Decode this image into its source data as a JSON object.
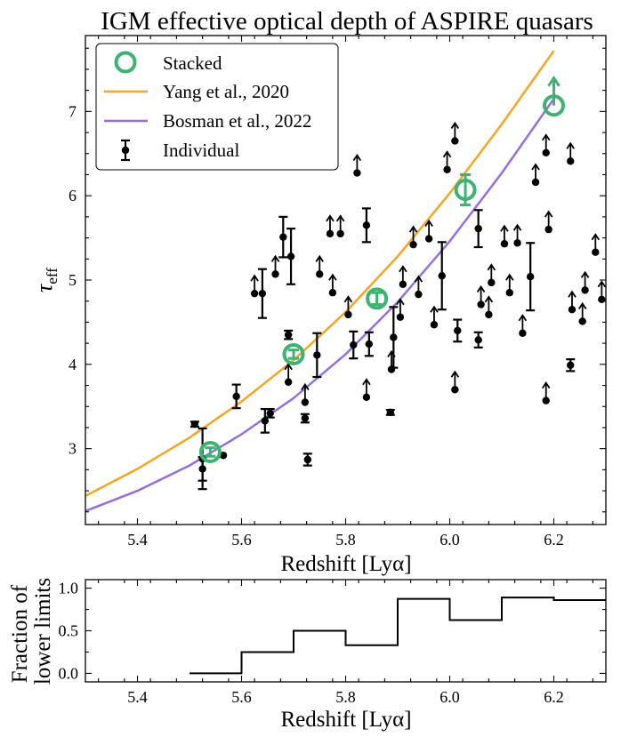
{
  "chart_data": [
    {
      "type": "scatter",
      "title": "IGM effective optical depth of ASPIRE quasars",
      "xlabel": "Redshift [Lyα]",
      "ylabel": "τ_eff",
      "ylabel_main": "τ",
      "ylabel_sub": "eff",
      "xlim": [
        5.3,
        6.3
      ],
      "ylim": [
        2.1,
        7.9
      ],
      "xticks": [
        5.4,
        5.6,
        5.8,
        6.0,
        6.2
      ],
      "xtick_labels": [
        "5.4",
        "5.6",
        "5.8",
        "6.0",
        "6.2"
      ],
      "yticks": [
        3,
        4,
        5,
        6,
        7
      ],
      "ytick_labels": [
        "3",
        "4",
        "5",
        "6",
        "7"
      ],
      "legend_position": "top-left",
      "legend": [
        {
          "label": "Stacked",
          "color": "#3cb371",
          "marker": "open-circle"
        },
        {
          "label": "Yang et al., 2020",
          "color": "#f5a623",
          "marker": "line"
        },
        {
          "label": "Bosman et al., 2022",
          "color": "#9370db",
          "marker": "line"
        },
        {
          "label": "Individual",
          "color": "#000000",
          "marker": "errorbar-point"
        }
      ],
      "series": [
        {
          "name": "Yang et al., 2020",
          "type": "line",
          "color": "#f5a623",
          "x": [
            5.3,
            5.4,
            5.5,
            5.6,
            5.7,
            5.8,
            5.9,
            6.0,
            6.1,
            6.2
          ],
          "y": [
            2.44,
            2.76,
            3.13,
            3.56,
            4.05,
            4.62,
            5.28,
            6.03,
            6.85,
            7.72
          ]
        },
        {
          "name": "Bosman et al., 2022",
          "type": "line",
          "color": "#9370db",
          "x": [
            5.3,
            5.4,
            5.5,
            5.6,
            5.7,
            5.8,
            5.9,
            6.0,
            6.1,
            6.2
          ],
          "y": [
            2.26,
            2.5,
            2.8,
            3.17,
            3.6,
            4.12,
            4.74,
            5.46,
            6.27,
            7.15
          ]
        },
        {
          "name": "Stacked",
          "type": "scatter",
          "color": "#3cb371",
          "points": [
            {
              "x": 5.54,
              "y": 2.96,
              "err": 0.05,
              "limit": false
            },
            {
              "x": 5.7,
              "y": 4.12,
              "err": 0.05,
              "limit": false
            },
            {
              "x": 5.86,
              "y": 4.78,
              "err": 0.07,
              "limit": false
            },
            {
              "x": 6.03,
              "y": 6.07,
              "err": 0.18,
              "limit": false
            },
            {
              "x": 6.2,
              "y": 7.07,
              "err": 0,
              "limit": true
            }
          ]
        },
        {
          "name": "Individual",
          "type": "scatter",
          "color": "#000000",
          "points": [
            {
              "x": 5.51,
              "y": 3.29,
              "err": 0.03,
              "limit": false
            },
            {
              "x": 5.525,
              "y": 2.88,
              "err": 0.36,
              "limit": false
            },
            {
              "x": 5.525,
              "y": 2.76,
              "err": 0.14,
              "limit": false
            },
            {
              "x": 5.565,
              "y": 2.92,
              "err": 0,
              "limit": false
            },
            {
              "x": 5.59,
              "y": 3.62,
              "err": 0.14,
              "limit": false
            },
            {
              "x": 5.645,
              "y": 3.33,
              "err": 0.14,
              "limit": false
            },
            {
              "x": 5.655,
              "y": 3.42,
              "err": 0.05,
              "limit": false
            },
            {
              "x": 5.625,
              "y": 4.84,
              "err": 0,
              "limit": true
            },
            {
              "x": 5.64,
              "y": 4.84,
              "err": 0.29,
              "limit": false
            },
            {
              "x": 5.665,
              "y": 5.07,
              "err": 0,
              "limit": true
            },
            {
              "x": 5.68,
              "y": 5.51,
              "err": 0.24,
              "limit": false
            },
            {
              "x": 5.695,
              "y": 5.28,
              "err": 0.33,
              "limit": false
            },
            {
              "x": 5.69,
              "y": 4.35,
              "err": 0.05,
              "limit": false
            },
            {
              "x": 5.69,
              "y": 3.79,
              "err": 0,
              "limit": true
            },
            {
              "x": 5.722,
              "y": 3.55,
              "err": 0,
              "limit": true
            },
            {
              "x": 5.722,
              "y": 3.36,
              "err": 0.05,
              "limit": false
            },
            {
              "x": 5.727,
              "y": 2.87,
              "err": 0.07,
              "limit": false
            },
            {
              "x": 5.745,
              "y": 4.11,
              "err": 0.26,
              "limit": false
            },
            {
              "x": 5.75,
              "y": 5.07,
              "err": 0,
              "limit": true
            },
            {
              "x": 5.77,
              "y": 5.55,
              "err": 0,
              "limit": true
            },
            {
              "x": 5.79,
              "y": 5.55,
              "err": 0,
              "limit": true
            },
            {
              "x": 5.775,
              "y": 4.85,
              "err": 0,
              "limit": true
            },
            {
              "x": 5.805,
              "y": 4.59,
              "err": 0,
              "limit": true
            },
            {
              "x": 5.815,
              "y": 4.23,
              "err": 0.16,
              "limit": false
            },
            {
              "x": 5.822,
              "y": 6.27,
              "err": 0,
              "limit": true
            },
            {
              "x": 5.84,
              "y": 5.65,
              "err": 0.2,
              "limit": false
            },
            {
              "x": 5.845,
              "y": 4.24,
              "err": 0.14,
              "limit": false
            },
            {
              "x": 5.84,
              "y": 3.61,
              "err": 0,
              "limit": true
            },
            {
              "x": 5.886,
              "y": 3.43,
              "err": 0.03,
              "limit": false
            },
            {
              "x": 5.888,
              "y": 3.94,
              "err": 0,
              "limit": true
            },
            {
              "x": 5.892,
              "y": 4.32,
              "err": 0.36,
              "limit": false
            },
            {
              "x": 5.905,
              "y": 4.56,
              "err": 0,
              "limit": true
            },
            {
              "x": 5.91,
              "y": 4.95,
              "err": 0,
              "limit": true
            },
            {
              "x": 5.93,
              "y": 5.42,
              "err": 0,
              "limit": true
            },
            {
              "x": 5.94,
              "y": 4.83,
              "err": 0,
              "limit": true
            },
            {
              "x": 5.96,
              "y": 5.49,
              "err": 0,
              "limit": true
            },
            {
              "x": 5.97,
              "y": 4.47,
              "err": 0,
              "limit": true
            },
            {
              "x": 5.985,
              "y": 5.05,
              "err": 0.4,
              "limit": false
            },
            {
              "x": 5.995,
              "y": 6.31,
              "err": 0,
              "limit": true
            },
            {
              "x": 6.01,
              "y": 6.65,
              "err": 0,
              "limit": true
            },
            {
              "x": 6.015,
              "y": 4.4,
              "err": 0.13,
              "limit": false
            },
            {
              "x": 6.01,
              "y": 3.7,
              "err": 0,
              "limit": true
            },
            {
              "x": 6.055,
              "y": 5.61,
              "err": 0.22,
              "limit": false
            },
            {
              "x": 6.06,
              "y": 4.71,
              "err": 0,
              "limit": true
            },
            {
              "x": 6.055,
              "y": 4.29,
              "err": 0.09,
              "limit": false
            },
            {
              "x": 6.075,
              "y": 4.59,
              "err": 0,
              "limit": true
            },
            {
              "x": 6.08,
              "y": 4.97,
              "err": 0,
              "limit": true
            },
            {
              "x": 6.105,
              "y": 5.43,
              "err": 0,
              "limit": true
            },
            {
              "x": 6.115,
              "y": 4.85,
              "err": 0,
              "limit": true
            },
            {
              "x": 6.13,
              "y": 5.44,
              "err": 0,
              "limit": true
            },
            {
              "x": 6.14,
              "y": 4.37,
              "err": 0,
              "limit": true
            },
            {
              "x": 6.155,
              "y": 5.04,
              "err": 0.4,
              "limit": false
            },
            {
              "x": 6.165,
              "y": 6.16,
              "err": 0,
              "limit": true
            },
            {
              "x": 6.185,
              "y": 6.51,
              "err": 0,
              "limit": true
            },
            {
              "x": 6.19,
              "y": 5.6,
              "err": 0,
              "limit": true
            },
            {
              "x": 6.185,
              "y": 3.57,
              "err": 0,
              "limit": true
            },
            {
              "x": 6.232,
              "y": 6.41,
              "err": 0,
              "limit": true
            },
            {
              "x": 6.235,
              "y": 4.65,
              "err": 0,
              "limit": true
            },
            {
              "x": 6.232,
              "y": 3.99,
              "err": 0.07,
              "limit": false
            },
            {
              "x": 6.255,
              "y": 4.51,
              "err": 0,
              "limit": true
            },
            {
              "x": 6.26,
              "y": 4.88,
              "err": 0,
              "limit": true
            },
            {
              "x": 6.28,
              "y": 5.33,
              "err": 0,
              "limit": true
            },
            {
              "x": 6.292,
              "y": 4.77,
              "err": 0,
              "limit": true
            }
          ]
        }
      ]
    },
    {
      "type": "line",
      "title": "",
      "xlabel": "Redshift [Lyα]",
      "ylabel": "Fraction of lower limits",
      "ylabel_lines": [
        "Fraction of",
        "lower limits"
      ],
      "xlim": [
        5.3,
        6.3
      ],
      "ylim": [
        -0.1,
        1.1
      ],
      "xticks": [
        5.4,
        5.6,
        5.8,
        6.0,
        6.2
      ],
      "xtick_labels": [
        "5.4",
        "5.6",
        "5.8",
        "6.0",
        "6.2"
      ],
      "yticks": [
        0.0,
        0.5,
        1.0
      ],
      "ytick_labels": [
        "0.0",
        "0.5",
        "1.0"
      ],
      "series": [
        {
          "name": "Fraction of lower limits",
          "type": "step",
          "color": "#000000",
          "bin_edges": [
            5.5,
            5.6,
            5.7,
            5.8,
            5.9,
            6.0,
            6.1,
            6.2,
            6.3
          ],
          "values": [
            0.0,
            0.25,
            0.5,
            0.33,
            0.875,
            0.625,
            0.89,
            0.86
          ]
        }
      ]
    }
  ]
}
